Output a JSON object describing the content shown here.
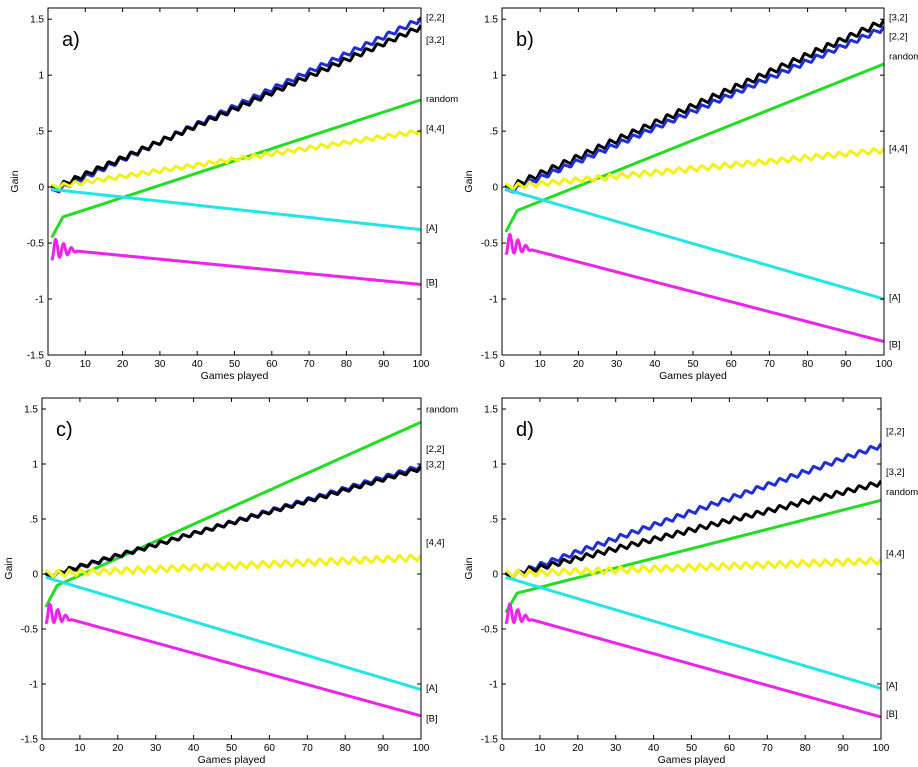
{
  "chart_data": [
    {
      "type": "line",
      "panel_label": "a)",
      "xlabel": "Games played",
      "ylabel": "Gain",
      "xlim": [
        0,
        100
      ],
      "ylim": [
        -1.5,
        1.6
      ],
      "xticks": [
        0,
        10,
        20,
        30,
        40,
        50,
        60,
        70,
        80,
        90,
        100
      ],
      "yticks": [
        -1.5,
        -1,
        -0.5,
        0,
        0.5,
        1,
        1.5
      ],
      "grid": false,
      "series": [
        {
          "name": "[2,2]",
          "color": "#1f2fd6",
          "start": -0.05,
          "end": 1.5,
          "zig": 0.05
        },
        {
          "name": "[3,2]",
          "color": "#000000",
          "start": -0.02,
          "end": 1.43,
          "zig": 0.05
        },
        {
          "name": "random",
          "color": "#22dd22",
          "start": -0.3,
          "end": 0.78,
          "zig": 0.0
        },
        {
          "name": "[4,4]",
          "color": "#f2f21a",
          "start": 0.0,
          "end": 0.5,
          "zig": 0.04
        },
        {
          "name": "[A]",
          "color": "#22e5e5",
          "start": -0.02,
          "end": -0.38,
          "zig": 0.0
        },
        {
          "name": "[B]",
          "color": "#ee22ee",
          "start": -0.55,
          "end": -0.87,
          "zig": 0.0
        }
      ],
      "labels": [
        {
          "text": "[2,2]",
          "y": 1.52
        },
        {
          "text": "[3,2]",
          "y": 1.32
        },
        {
          "text": "random",
          "y": 0.79
        },
        {
          "text": "[4,4]",
          "y": 0.53
        },
        {
          "text": "[A]",
          "y": -0.36
        },
        {
          "text": "[B]",
          "y": -0.85
        }
      ]
    },
    {
      "type": "line",
      "panel_label": "b)",
      "xlabel": "Games played",
      "ylabel": "Gain",
      "xlim": [
        0,
        100
      ],
      "ylim": [
        -1.5,
        1.6
      ],
      "xticks": [
        0,
        10,
        20,
        30,
        40,
        50,
        60,
        70,
        80,
        90,
        100
      ],
      "yticks": [
        -1.5,
        -1,
        -0.5,
        0,
        0.5,
        1,
        1.5
      ],
      "grid": false,
      "series": [
        {
          "name": "[3,2]",
          "color": "#000000",
          "start": -0.02,
          "end": 1.48,
          "zig": 0.06
        },
        {
          "name": "[2,2]",
          "color": "#1f2fd6",
          "start": -0.05,
          "end": 1.42,
          "zig": 0.05
        },
        {
          "name": "random",
          "color": "#22dd22",
          "start": -0.25,
          "end": 1.1,
          "zig": 0.0
        },
        {
          "name": "[4,4]",
          "color": "#f2f21a",
          "start": 0.0,
          "end": 0.33,
          "zig": 0.05
        },
        {
          "name": "[A]",
          "color": "#22e5e5",
          "start": -0.02,
          "end": -1.0,
          "zig": 0.0
        },
        {
          "name": "[B]",
          "color": "#ee22ee",
          "start": -0.5,
          "end": -1.38,
          "zig": 0.0
        }
      ],
      "labels": [
        {
          "text": "[3,2]",
          "y": 1.52
        },
        {
          "text": "[2,2]",
          "y": 1.35
        },
        {
          "text": "random",
          "y": 1.17
        },
        {
          "text": "[4,4]",
          "y": 0.35
        },
        {
          "text": "[A]",
          "y": -0.98
        },
        {
          "text": "[B]",
          "y": -1.4
        }
      ]
    },
    {
      "type": "line",
      "panel_label": "c)",
      "xlabel": "Games played",
      "ylabel": "Gain",
      "xlim": [
        0,
        100
      ],
      "ylim": [
        -1.5,
        1.6
      ],
      "xticks": [
        0,
        10,
        20,
        30,
        40,
        50,
        60,
        70,
        80,
        90,
        100
      ],
      "yticks": [
        -1.5,
        -1,
        -0.5,
        0,
        0.5,
        1,
        1.5
      ],
      "grid": false,
      "series": [
        {
          "name": "random",
          "color": "#22dd22",
          "start": -0.15,
          "end": 1.38,
          "zig": 0.0
        },
        {
          "name": "[2,2]",
          "color": "#1f2fd6",
          "start": -0.03,
          "end": 0.98,
          "zig": 0.04
        },
        {
          "name": "[3,2]",
          "color": "#000000",
          "start": -0.02,
          "end": 0.96,
          "zig": 0.04
        },
        {
          "name": "[4,4]",
          "color": "#f2f21a",
          "start": 0.0,
          "end": 0.15,
          "zig": 0.06
        },
        {
          "name": "[A]",
          "color": "#22e5e5",
          "start": -0.03,
          "end": -1.05,
          "zig": 0.0
        },
        {
          "name": "[B]",
          "color": "#ee22ee",
          "start": -0.35,
          "end": -1.29,
          "zig": 0.0
        }
      ],
      "labels": [
        {
          "text": "random",
          "y": 1.5
        },
        {
          "text": "[2,2]",
          "y": 1.14
        },
        {
          "text": "[3,2]",
          "y": 1.0
        },
        {
          "text": "[4,4]",
          "y": 0.29
        },
        {
          "text": "[A]",
          "y": -1.03
        },
        {
          "text": "[B]",
          "y": -1.31
        }
      ]
    },
    {
      "type": "line",
      "panel_label": "d)",
      "xlabel": "Games played",
      "ylabel": "Gain",
      "xlim": [
        0,
        100
      ],
      "ylim": [
        -1.5,
        1.6
      ],
      "xticks": [
        0,
        10,
        20,
        30,
        40,
        50,
        60,
        70,
        80,
        90,
        100
      ],
      "yticks": [
        -1.5,
        -1,
        -0.5,
        0,
        0.5,
        1,
        1.5
      ],
      "grid": false,
      "series": [
        {
          "name": "[2,2]",
          "color": "#1f2fd6",
          "start": -0.03,
          "end": 1.17,
          "zig": 0.05
        },
        {
          "name": "[3,2]",
          "color": "#000000",
          "start": -0.02,
          "end": 0.83,
          "zig": 0.05
        },
        {
          "name": "random",
          "color": "#22dd22",
          "start": -0.2,
          "end": 0.67,
          "zig": 0.0
        },
        {
          "name": "[4,4]",
          "color": "#f2f21a",
          "start": 0.0,
          "end": 0.12,
          "zig": 0.06
        },
        {
          "name": "[A]",
          "color": "#22e5e5",
          "start": -0.03,
          "end": -1.04,
          "zig": 0.0
        },
        {
          "name": "[B]",
          "color": "#ee22ee",
          "start": -0.35,
          "end": -1.3,
          "zig": 0.0
        }
      ],
      "labels": [
        {
          "text": "[2,2]",
          "y": 1.3
        },
        {
          "text": "[3,2]",
          "y": 0.93
        },
        {
          "text": "random",
          "y": 0.75
        },
        {
          "text": "[4,4]",
          "y": 0.19
        },
        {
          "text": "[A]",
          "y": -1.01
        },
        {
          "text": "[B]",
          "y": -1.27
        }
      ]
    }
  ]
}
